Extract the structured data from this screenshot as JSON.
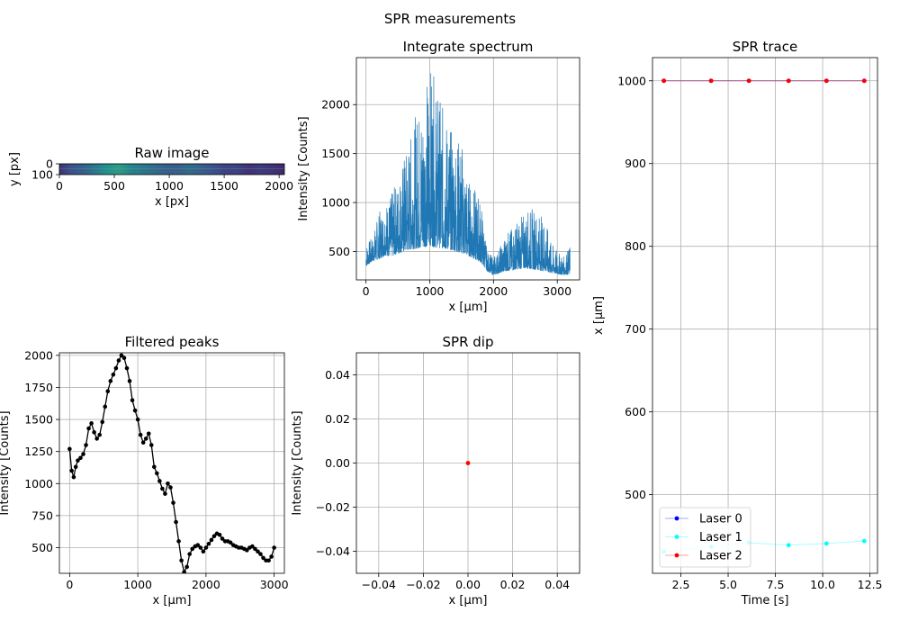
{
  "figure": {
    "title": "SPR measurements"
  },
  "chart_data": [
    {
      "id": "raw",
      "type": "heatmap",
      "title": "Raw image",
      "xlabel": "x [px]",
      "ylabel": "y [px]",
      "xlim": [
        0,
        2048
      ],
      "ylim": [
        100,
        0
      ],
      "xticks": [
        0,
        500,
        1000,
        1500,
        2000
      ],
      "xtick_labels": [
        "0",
        "500",
        "1000",
        "1500",
        "2000"
      ],
      "yticks": [
        0,
        100
      ],
      "ytick_labels": [
        "0",
        "100"
      ],
      "colormap": "viridis",
      "column_intensity": [
        0.15,
        0.25,
        0.3,
        0.4,
        0.5,
        0.55,
        0.45,
        0.4,
        0.35,
        0.3,
        0.3,
        0.35,
        0.3,
        0.25,
        0.2,
        0.2,
        0.15,
        0.18,
        0.15,
        0.12
      ]
    },
    {
      "id": "spectrum",
      "type": "line",
      "title": "Integrate spectrum",
      "xlabel": "x [μm]",
      "ylabel": "Intensity [Counts]",
      "xlim": [
        -150,
        3350
      ],
      "ylim": [
        210,
        2480
      ],
      "xticks": [
        0,
        1000,
        2000,
        3000
      ],
      "xtick_labels": [
        "0",
        "1000",
        "2000",
        "3000"
      ],
      "yticks": [
        500,
        1000,
        1500,
        2000
      ],
      "ytick_labels": [
        "500",
        "1000",
        "1500",
        "2000"
      ],
      "color": "#1f77b4",
      "x": [
        0,
        100,
        200,
        300,
        400,
        500,
        600,
        700,
        800,
        900,
        1000,
        1100,
        1200,
        1300,
        1400,
        1500,
        1600,
        1700,
        1800,
        1900,
        2000,
        2100,
        2200,
        2300,
        2400,
        2500,
        2600,
        2700,
        2800,
        2900,
        3000,
        3100,
        3200
      ],
      "series": [
        {
          "name": "",
          "values": [
            580,
            650,
            900,
            1000,
            1100,
            1250,
            1500,
            1700,
            1950,
            2100,
            2450,
            2200,
            2000,
            1800,
            1700,
            1650,
            1250,
            1150,
            1050,
            500,
            450,
            550,
            700,
            750,
            850,
            900,
            950,
            900,
            850,
            600,
            500,
            450,
            560
          ]
        },
        {
          "name": "",
          "values": [
            350,
            400,
            420,
            460,
            450,
            480,
            500,
            520,
            530,
            540,
            560,
            540,
            530,
            520,
            500,
            480,
            460,
            420,
            390,
            300,
            260,
            280,
            300,
            310,
            320,
            330,
            320,
            310,
            300,
            280,
            270,
            260,
            270
          ]
        }
      ]
    },
    {
      "id": "trace",
      "type": "line",
      "title": "SPR trace",
      "xlabel": "Time [s]",
      "ylabel": "x [μm]",
      "xlim": [
        1.0,
        12.9
      ],
      "ylim": [
        405,
        1028
      ],
      "xticks": [
        2.5,
        5.0,
        7.5,
        10.0,
        12.5
      ],
      "xtick_labels": [
        "2.5",
        "5.0",
        "7.5",
        "10.0",
        "12.5"
      ],
      "yticks": [
        500,
        600,
        700,
        800,
        900,
        1000
      ],
      "ytick_labels": [
        "500",
        "600",
        "700",
        "800",
        "900",
        "1000"
      ],
      "legend_loc": "lower-left",
      "series": [
        {
          "name": "Laser 0",
          "color": "#0000ff",
          "x": [
            1.6,
            4.1,
            6.1,
            8.2,
            10.2,
            12.2
          ],
          "values": [
            1000,
            1000,
            1000,
            1000,
            1000,
            1000
          ]
        },
        {
          "name": "Laser 1",
          "color": "#00ffff",
          "x": [
            1.6,
            4.1,
            6.1,
            8.2,
            10.2,
            12.2
          ],
          "values": [
            431,
            437,
            442,
            439,
            441,
            444
          ]
        },
        {
          "name": "Laser 2",
          "color": "#ff0000",
          "x": [
            1.6,
            4.1,
            6.1,
            8.2,
            10.2,
            12.2
          ],
          "values": [
            1000,
            1000,
            1000,
            1000,
            1000,
            1000
          ]
        }
      ]
    },
    {
      "id": "peaks",
      "type": "line",
      "title": "Filtered peaks",
      "xlabel": "x [μm]",
      "ylabel": "Intensity [Counts]",
      "xlim": [
        -150,
        3150
      ],
      "ylim": [
        300,
        2020
      ],
      "xticks": [
        0,
        1000,
        2000,
        3000
      ],
      "xtick_labels": [
        "0",
        "1000",
        "2000",
        "3000"
      ],
      "yticks": [
        500,
        750,
        1000,
        1250,
        1500,
        1750,
        2000
      ],
      "ytick_labels": [
        "500",
        "750",
        "1000",
        "1250",
        "1500",
        "1750",
        "2000"
      ],
      "color": "#000000",
      "x": [
        0,
        30,
        60,
        90,
        120,
        160,
        200,
        240,
        280,
        320,
        360,
        400,
        440,
        480,
        520,
        560,
        600,
        640,
        680,
        720,
        760,
        800,
        840,
        880,
        920,
        960,
        1000,
        1040,
        1080,
        1120,
        1160,
        1200,
        1240,
        1280,
        1320,
        1360,
        1400,
        1440,
        1480,
        1520,
        1560,
        1600,
        1640,
        1680,
        1720,
        1760,
        1800,
        1840,
        1880,
        1920,
        1960,
        2000,
        2040,
        2080,
        2120,
        2160,
        2200,
        2240,
        2280,
        2320,
        2360,
        2400,
        2440,
        2480,
        2520,
        2560,
        2600,
        2640,
        2680,
        2720,
        2760,
        2800,
        2840,
        2880,
        2920,
        2960,
        3000
      ],
      "values": [
        1270,
        1100,
        1050,
        1130,
        1180,
        1200,
        1230,
        1300,
        1430,
        1470,
        1400,
        1350,
        1380,
        1480,
        1600,
        1720,
        1800,
        1850,
        1900,
        1960,
        2000,
        1980,
        1900,
        1800,
        1650,
        1570,
        1500,
        1380,
        1320,
        1350,
        1390,
        1300,
        1130,
        1080,
        1020,
        960,
        920,
        1000,
        970,
        850,
        700,
        550,
        400,
        310,
        350,
        450,
        490,
        510,
        520,
        500,
        470,
        500,
        530,
        560,
        590,
        610,
        600,
        570,
        550,
        550,
        540,
        520,
        510,
        500,
        500,
        490,
        480,
        500,
        510,
        490,
        470,
        450,
        420,
        400,
        400,
        430,
        500
      ]
    },
    {
      "id": "dip",
      "type": "scatter",
      "title": "SPR dip",
      "xlabel": "x [μm]",
      "ylabel": "Intensity [Counts]",
      "xlim": [
        -0.05,
        0.05
      ],
      "ylim": [
        -0.05,
        0.05
      ],
      "xticks": [
        -0.04,
        -0.02,
        0.0,
        0.02,
        0.04
      ],
      "xtick_labels": [
        "−0.04",
        "−0.02",
        "0.00",
        "0.02",
        "0.04"
      ],
      "yticks": [
        -0.04,
        -0.02,
        0.0,
        0.02,
        0.04
      ],
      "ytick_labels": [
        "−0.04",
        "−0.02",
        "0.00",
        "0.02",
        "0.04"
      ],
      "color": "#ff0000",
      "x": [
        0.0
      ],
      "values": [
        0.0
      ]
    }
  ]
}
